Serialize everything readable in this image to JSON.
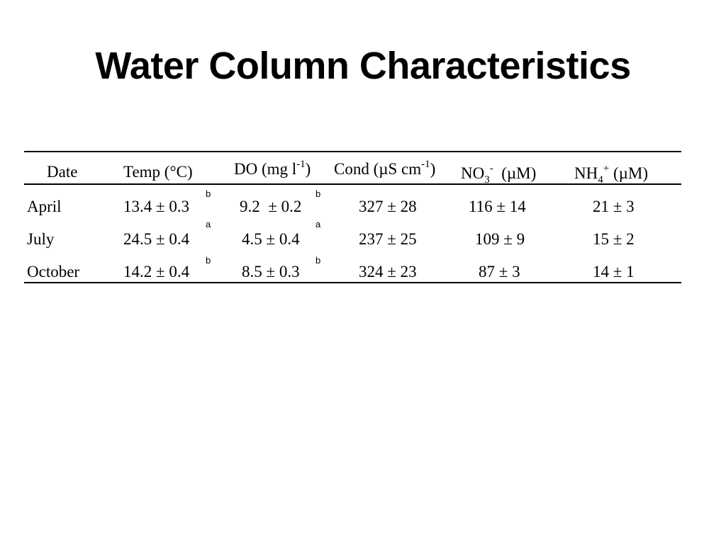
{
  "title": "Water Column Characteristics",
  "table": {
    "headers": {
      "date": "Date",
      "temp": "Temp (°C)",
      "do_main": "DO (mg l",
      "do_sup": "-1",
      "do_close": ")",
      "cond_main": "Cond (µS cm",
      "cond_sup": "-1",
      "cond_close": ")",
      "no3_main": "NO",
      "no3_sub": "3",
      "no3_sup": "-",
      "no3_unit": "(µM)",
      "nh4_main": "NH",
      "nh4_sub": "4",
      "nh4_sup": "+",
      "nh4_unit": "(µM)"
    },
    "rows": [
      {
        "date": "April",
        "temp": "13.4 ± 0.3",
        "temp_mark": "b",
        "do": "9.2  ± 0.2",
        "do_mark": "b",
        "cond": "327 ± 28",
        "no3": "116 ± 14",
        "nh4": "21 ± 3"
      },
      {
        "date": "July",
        "temp": "24.5 ± 0.4",
        "temp_mark": "a",
        "do": "4.5 ± 0.4",
        "do_mark": "a",
        "cond": "237 ± 25",
        "no3": "109 ± 9",
        "nh4": "15 ± 2"
      },
      {
        "date": "October",
        "temp": "14.2 ± 0.4",
        "temp_mark": "b",
        "do": "8.5 ± 0.3",
        "do_mark": "b",
        "cond": "324 ± 23",
        "no3": "87 ± 3",
        "nh4": "14 ± 1"
      }
    ]
  }
}
